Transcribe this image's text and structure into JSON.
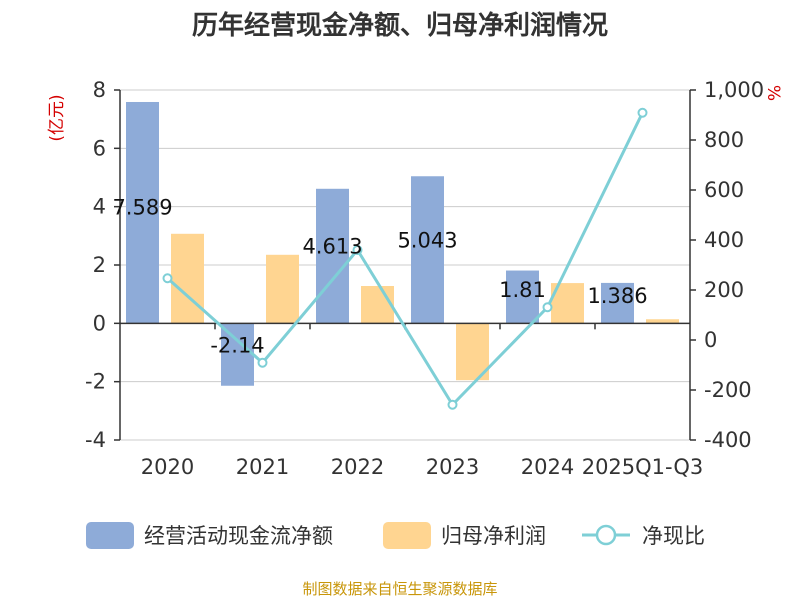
{
  "title": "历年经营现金净额、归母净利润情况",
  "source": "制图数据来自恒生聚源数据库",
  "colors": {
    "cashflow": "#8eabd8",
    "netprofit": "#ffd591",
    "ratio": "#7ecfd6",
    "axis": "#333333",
    "grid": "#cccccc",
    "unit": "#d40000",
    "source": "#c8960a"
  },
  "chart_data": {
    "type": "bar",
    "title": "历年经营现金净额、归母净利润情况",
    "categories": [
      "2020",
      "2021",
      "2022",
      "2023",
      "2024",
      "2025Q1-Q3"
    ],
    "left_unit": "(亿元)",
    "right_unit": "%",
    "left_axis": {
      "min": -4,
      "max": 8,
      "ticks": [
        "8",
        "6",
        "4",
        "2",
        "0",
        "-2",
        "-4"
      ],
      "tick_values": [
        8,
        6,
        4,
        2,
        0,
        -2,
        -4
      ]
    },
    "right_axis": {
      "min": -400,
      "max": 1000,
      "ticks": [
        "1,000",
        "800",
        "600",
        "400",
        "200",
        "0",
        "-200",
        "-400"
      ],
      "tick_values": [
        1000,
        800,
        600,
        400,
        200,
        0,
        -200,
        -400
      ]
    },
    "grid": true,
    "legend_position": "bottom",
    "series": [
      {
        "name": "经营活动现金流净额",
        "kind": "bar",
        "axis": "left",
        "values": [
          7.589,
          -2.14,
          4.613,
          5.043,
          1.81,
          1.386
        ],
        "labels": [
          "7.589",
          "-2.14",
          "4.613",
          "5.043",
          "1.81",
          "1.386"
        ]
      },
      {
        "name": "归母净利润",
        "kind": "bar",
        "axis": "left",
        "values": [
          3.07,
          2.35,
          1.28,
          -1.95,
          1.38,
          0.14
        ]
      },
      {
        "name": "净现比",
        "kind": "line",
        "axis": "right",
        "values": [
          247,
          -91,
          360,
          -259,
          131,
          909
        ]
      }
    ]
  }
}
